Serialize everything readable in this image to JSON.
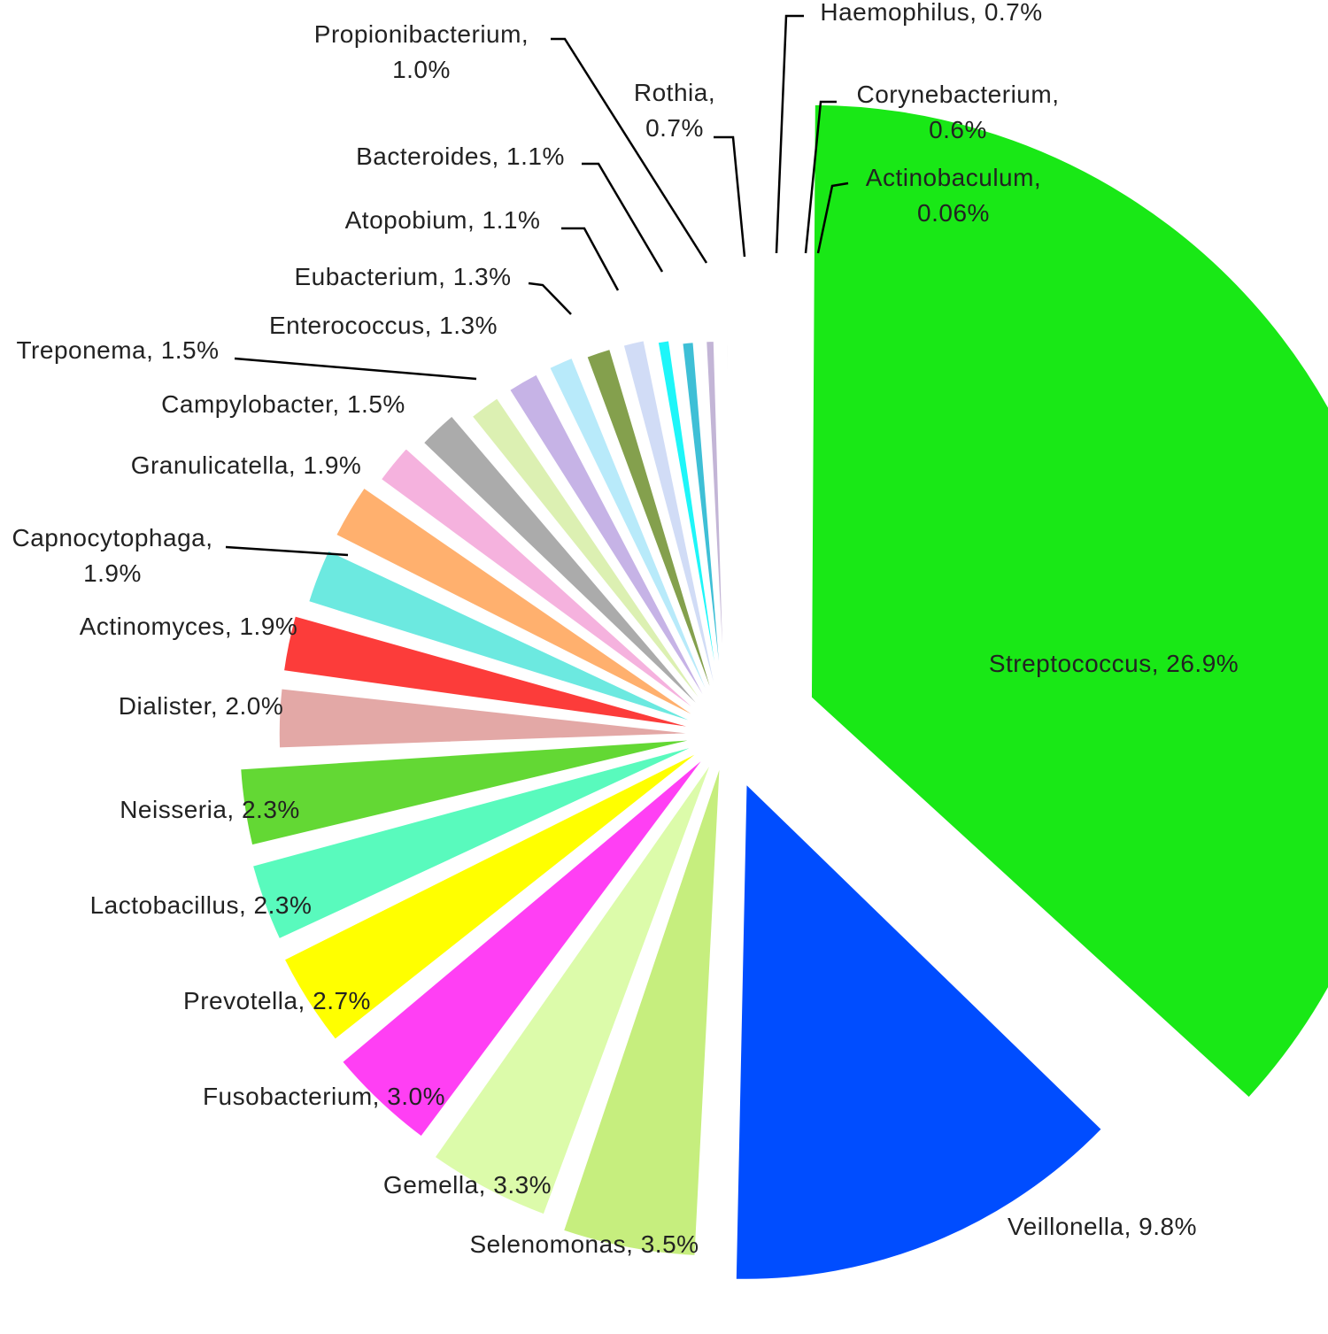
{
  "chart_data": {
    "type": "pie",
    "title": "",
    "series": [
      {
        "name": "",
        "values": [
          {
            "label": "Streptococcus, 26.9%",
            "value": 26.9,
            "color": "#19e816"
          },
          {
            "label": "Veillonella, 9.8%",
            "value": 9.8,
            "color": "#004dff"
          },
          {
            "label": "Selenomonas, 3.5%",
            "value": 3.5,
            "color": "#c6ee7e"
          },
          {
            "label": "Gemella, 3.3%",
            "value": 3.3,
            "color": "#dcfbaa"
          },
          {
            "label": "Fusobacterium, 3.0%",
            "value": 3.0,
            "color": "#ff3ff4"
          },
          {
            "label": "Prevotella, 2.7%",
            "value": 2.7,
            "color": "#ffff00"
          },
          {
            "label": "Lactobacillus, 2.3%",
            "value": 2.3,
            "color": "#59fabd"
          },
          {
            "label": "Neisseria, 2.3%",
            "value": 2.3,
            "color": "#63d834"
          },
          {
            "label": "Dialister, 2.0%",
            "value": 2.0,
            "color": "#e3a8a6"
          },
          {
            "label": "Actinomyces, 1.9%",
            "value": 1.9,
            "color": "#fc3c3a"
          },
          {
            "label": "Capnocytophaga,\n1.9%",
            "value": 1.9,
            "color": "#6ce9e0"
          },
          {
            "label": "Granulicatella, 1.9%",
            "value": 1.9,
            "color": "#ffb06e"
          },
          {
            "label": "Campylobacter, 1.5%",
            "value": 1.5,
            "color": "#f5b2de"
          },
          {
            "label": "Treponema, 1.5%",
            "value": 1.5,
            "color": "#ababab"
          },
          {
            "label": "Enterococcus, 1.3%",
            "value": 1.3,
            "color": "#dcf0b2"
          },
          {
            "label": "Eubacterium, 1.3%",
            "value": 1.3,
            "color": "#c6b3e6"
          },
          {
            "label": "Atopobium, 1.1%",
            "value": 1.1,
            "color": "#b8eafa"
          },
          {
            "label": "Bacteroides, 1.1%",
            "value": 1.1,
            "color": "#84a04d"
          },
          {
            "label": "Propionibacterium,\n1.0%",
            "value": 1.0,
            "color": "#d1dcf6"
          },
          {
            "label": "Rothia,\n0.7%",
            "value": 0.7,
            "color": "#1ef6f9"
          },
          {
            "label": "Haemophilus, 0.7%",
            "value": 0.7,
            "color": "#3ebfd6"
          },
          {
            "label": "Corynebacterium,\n0.6%",
            "value": 0.6,
            "color": "#c3b5d6"
          },
          {
            "label": "Actinobaculum,\n0.06%",
            "value": 0.06,
            "color": "#e6e6e6"
          }
        ]
      }
    ],
    "legend": "none",
    "label_style": "outside with leader lines"
  }
}
